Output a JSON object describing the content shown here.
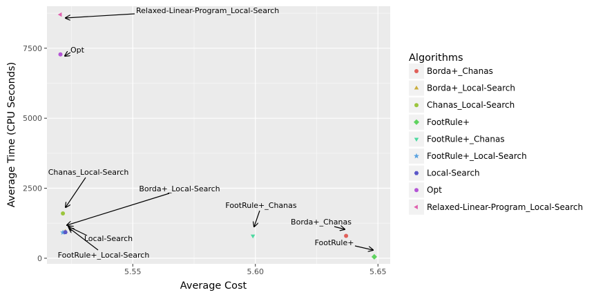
{
  "chart_data": {
    "type": "scatter",
    "xlabel": "Average Cost",
    "ylabel": "Average Time (CPU Seconds)",
    "xlim": [
      5.515,
      5.655
    ],
    "ylim": [
      -200,
      9000
    ],
    "x_ticks": [
      5.55,
      5.6,
      5.65
    ],
    "x_tick_labels": [
      "5.55",
      "5.60",
      "5.65"
    ],
    "y_ticks": [
      0,
      2500,
      5000,
      7500
    ],
    "y_tick_labels": [
      "0",
      "2500",
      "5000",
      "7500"
    ],
    "grid": true,
    "legend": {
      "title": "Algorithms",
      "placement": "right"
    },
    "series": [
      {
        "name": "Borda+_Chanas",
        "shape": "circle",
        "color": "#E0605A",
        "x": 5.637,
        "y": 800,
        "label": "Borda+_Chanas"
      },
      {
        "name": "Borda+_Local-Search",
        "shape": "triangle-up",
        "color": "#C9AD3D",
        "x": 5.5225,
        "y": 950,
        "label": "Borda+_Local-Search"
      },
      {
        "name": "Chanas_Local-Search",
        "shape": "circle",
        "color": "#9BC53D",
        "x": 5.5215,
        "y": 1600,
        "label": "Chanas_Local-Search"
      },
      {
        "name": "FootRule+",
        "shape": "diamond",
        "color": "#5FD35F",
        "x": 5.6485,
        "y": 50,
        "label": "FootRule+"
      },
      {
        "name": "FootRule+_Chanas",
        "shape": "triangle-down",
        "color": "#4DD9A0",
        "x": 5.599,
        "y": 800,
        "label": "FootRule+_Chanas"
      },
      {
        "name": "FootRule+_Local-Search",
        "shape": "star",
        "color": "#5BA3E0",
        "x": 5.5215,
        "y": 920,
        "label": "FootRule+_Local-Search"
      },
      {
        "name": "Local-Search",
        "shape": "hexagon",
        "color": "#5A57C8",
        "x": 5.5225,
        "y": 930,
        "label": "Local-Search"
      },
      {
        "name": "Opt",
        "shape": "circle",
        "color": "#B455D6",
        "x": 5.5205,
        "y": 7280,
        "label": "Opt"
      },
      {
        "name": "Relaxed-Linear-Program_Local-Search",
        "shape": "triangle-left",
        "color": "#E05FAE",
        "x": 5.5205,
        "y": 8700,
        "label": "Relaxed-Linear-Program_Local-Search"
      }
    ]
  }
}
